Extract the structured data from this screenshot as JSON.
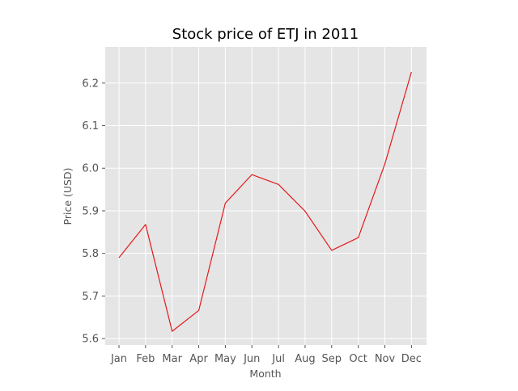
{
  "chart_data": {
    "type": "line",
    "title": "Stock price of ETJ in 2011",
    "xlabel": "Month",
    "ylabel": "Price (USD)",
    "categories": [
      "Jan",
      "Feb",
      "Mar",
      "Apr",
      "May",
      "Jun",
      "Jul",
      "Aug",
      "Sep",
      "Oct",
      "Nov",
      "Dec"
    ],
    "series": [
      {
        "values": [
          5.79,
          5.868,
          5.617,
          5.666,
          5.918,
          5.985,
          5.962,
          5.899,
          5.807,
          5.837,
          6.01,
          6.226
        ]
      }
    ],
    "ylim": [
      5.585,
      6.285
    ],
    "yticks": [
      5.6,
      5.7,
      5.8,
      5.9,
      6.0,
      6.1,
      6.2
    ],
    "ytick_labels": [
      "5.6",
      "5.7",
      "5.8",
      "5.9",
      "6.0",
      "6.1",
      "6.2"
    ],
    "grid": true,
    "legend": "none",
    "colors": {
      "line": "#e41a1c",
      "plot_background": "#e5e5e5",
      "grid": "#ffffff",
      "page_background": "#ffffff"
    }
  }
}
